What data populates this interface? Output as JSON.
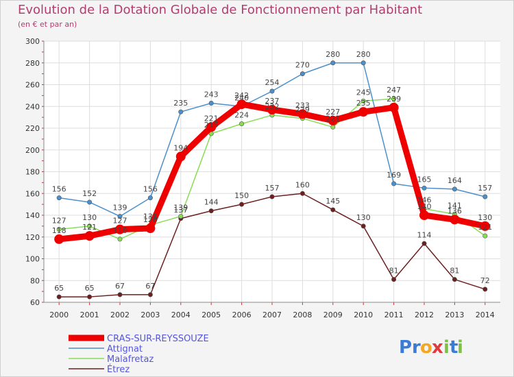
{
  "chart_data": {
    "type": "line",
    "title": "Evolution de la Dotation Globale de Fonctionnement par Habitant",
    "subtitle": "(en € et par an)",
    "categories": [
      "2000",
      "2001",
      "2002",
      "2003",
      "2004",
      "2005",
      "2006",
      "2007",
      "2008",
      "2009",
      "2010",
      "2011",
      "2012",
      "2013",
      "2014"
    ],
    "yticks": [
      60,
      80,
      100,
      120,
      140,
      160,
      180,
      200,
      220,
      240,
      260,
      280,
      300
    ],
    "ylim": [
      60,
      300
    ],
    "grid": true,
    "legend_position": "bottom-left",
    "series": [
      {
        "name": "Étrez",
        "color": "#6b1f1f",
        "values": [
          65,
          65,
          67,
          67,
          137,
          144,
          150,
          157,
          160,
          145,
          130,
          81,
          114,
          81,
          72
        ]
      },
      {
        "name": "Malafretaz",
        "color": "#88dd55",
        "values": [
          127,
          130,
          118,
          131,
          139,
          215,
          224,
          232,
          229,
          221,
          245,
          247,
          146,
          141,
          121
        ]
      },
      {
        "name": "Attignat",
        "color": "#4a90cc",
        "values": [
          156,
          152,
          139,
          156,
          235,
          243,
          240,
          254,
          270,
          280,
          280,
          169,
          165,
          164,
          157
        ]
      },
      {
        "name": "CRAS-SUR-REYSSOUZE",
        "color": "#ee0000",
        "values": [
          118,
          121,
          127,
          128,
          194,
          221,
          242,
          237,
          233,
          227,
          235,
          239,
          140,
          136,
          130
        ]
      }
    ],
    "legend_order": [
      "CRAS-SUR-REYSSOUZE",
      "Attignat",
      "Malafretaz",
      "Étrez"
    ]
  },
  "logo": {
    "text": "Proxiti",
    "letters": [
      "P",
      "r",
      "o",
      "x",
      "i",
      "t",
      "i"
    ],
    "colors": [
      "#3a7bd5",
      "#3a7bd5",
      "#f5a623",
      "#e0393e",
      "#7cc242",
      "#3a7bd5",
      "#7cc242"
    ]
  }
}
